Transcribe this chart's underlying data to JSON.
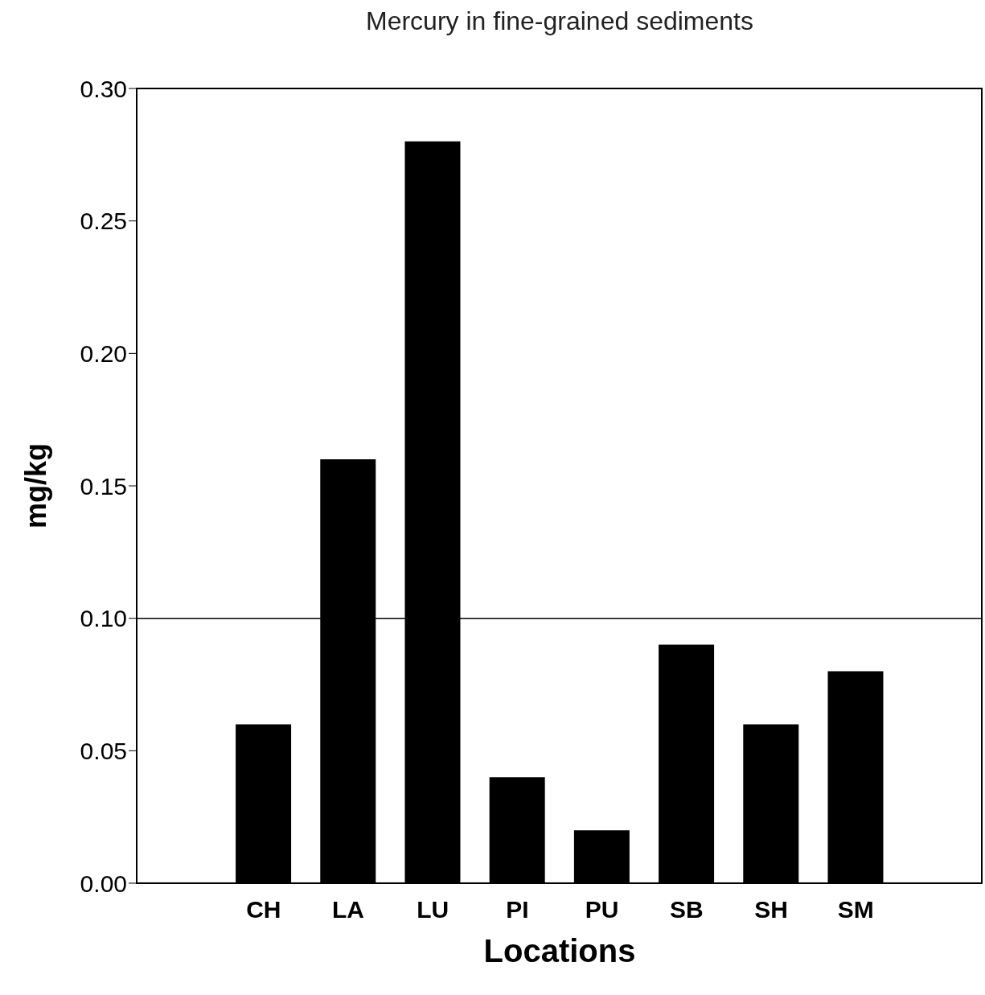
{
  "chart_data": {
    "type": "bar",
    "title": "Mercury in fine-grained sediments",
    "xlabel": "Locations",
    "ylabel": "mg/kg",
    "categories": [
      null,
      "CH",
      "LA",
      "LU",
      "PI",
      "PU",
      "SB",
      "SH",
      "SM",
      null
    ],
    "values": [
      null,
      0.06,
      0.16,
      0.28,
      0.04,
      0.02,
      0.09,
      0.06,
      0.08,
      null
    ],
    "color": "#000000",
    "ylim": [
      0,
      0.3
    ],
    "yticks": [
      {
        "value": 0,
        "label": "0.00"
      },
      {
        "value": 0.05,
        "label": "0.05"
      },
      {
        "value": 0.1,
        "label": "0.10"
      },
      {
        "value": 0.15,
        "label": "0.15"
      },
      {
        "value": 0.2,
        "label": "0.20"
      },
      {
        "value": 0.25,
        "label": "0.25"
      },
      {
        "value": 0.3,
        "label": "0.30"
      }
    ],
    "ref_lines": [
      {
        "axis": "y",
        "value": 0.1,
        "color": "#000000"
      }
    ]
  }
}
